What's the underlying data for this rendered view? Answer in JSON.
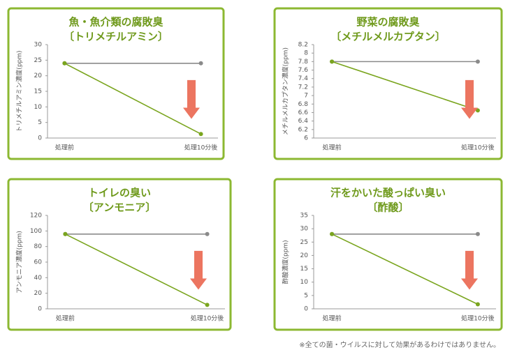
{
  "chart_data": [
    {
      "type": "line",
      "title": "魚・魚介類の腐敗臭",
      "subtitle": "〔トリメチルアミン〕",
      "y_label": "トリメチルアミン濃度(ppm)",
      "categories": [
        "処理前",
        "処理10分後"
      ],
      "series": [
        {
          "color": "#8a8a8a",
          "values": [
            24,
            24
          ]
        },
        {
          "color": "#7aa51e",
          "values": [
            24,
            1.3
          ]
        }
      ],
      "ylim": [
        0,
        30
      ],
      "yticks": [
        0,
        5,
        10,
        15,
        20,
        25,
        30
      ]
    },
    {
      "type": "line",
      "title": "野菜の腐敗臭",
      "subtitle": "〔メチルメルカプタン〕",
      "y_label": "メチルメルカプタン濃度(ppm)",
      "categories": [
        "処理前",
        "処理10分後"
      ],
      "series": [
        {
          "color": "#8a8a8a",
          "values": [
            7.8,
            7.8
          ]
        },
        {
          "color": "#7aa51e",
          "values": [
            7.8,
            6.65
          ]
        }
      ],
      "ylim": [
        6,
        8.2
      ],
      "yticks": [
        6,
        6.2,
        6.4,
        6.6,
        6.8,
        7,
        7.2,
        7.4,
        7.6,
        7.8,
        8,
        8.2
      ]
    },
    {
      "type": "line",
      "title": "トイレの臭い",
      "subtitle": "〔アンモニア〕",
      "y_label": "アンモニア濃度(ppm)",
      "categories": [
        "処理前",
        "処理10分後"
      ],
      "series": [
        {
          "color": "#8a8a8a",
          "values": [
            96,
            96
          ]
        },
        {
          "color": "#7aa51e",
          "values": [
            96,
            5
          ]
        }
      ],
      "ylim": [
        0,
        120
      ],
      "yticks": [
        0,
        20,
        40,
        60,
        80,
        100,
        120
      ]
    },
    {
      "type": "line",
      "title": "汗をかいた酸っぱい臭い",
      "subtitle": "〔酢酸〕",
      "y_label": "酢酸濃度(ppm)",
      "categories": [
        "処理前",
        "処理10分後"
      ],
      "series": [
        {
          "color": "#8a8a8a",
          "values": [
            28,
            28
          ]
        },
        {
          "color": "#7aa51e",
          "values": [
            28,
            1.7
          ]
        }
      ],
      "ylim": [
        0,
        35
      ],
      "yticks": [
        0,
        5,
        10,
        15,
        20,
        25,
        30,
        35
      ]
    }
  ],
  "note": "※全ての菌・ウイルスに対して効果があるわけではありません。"
}
